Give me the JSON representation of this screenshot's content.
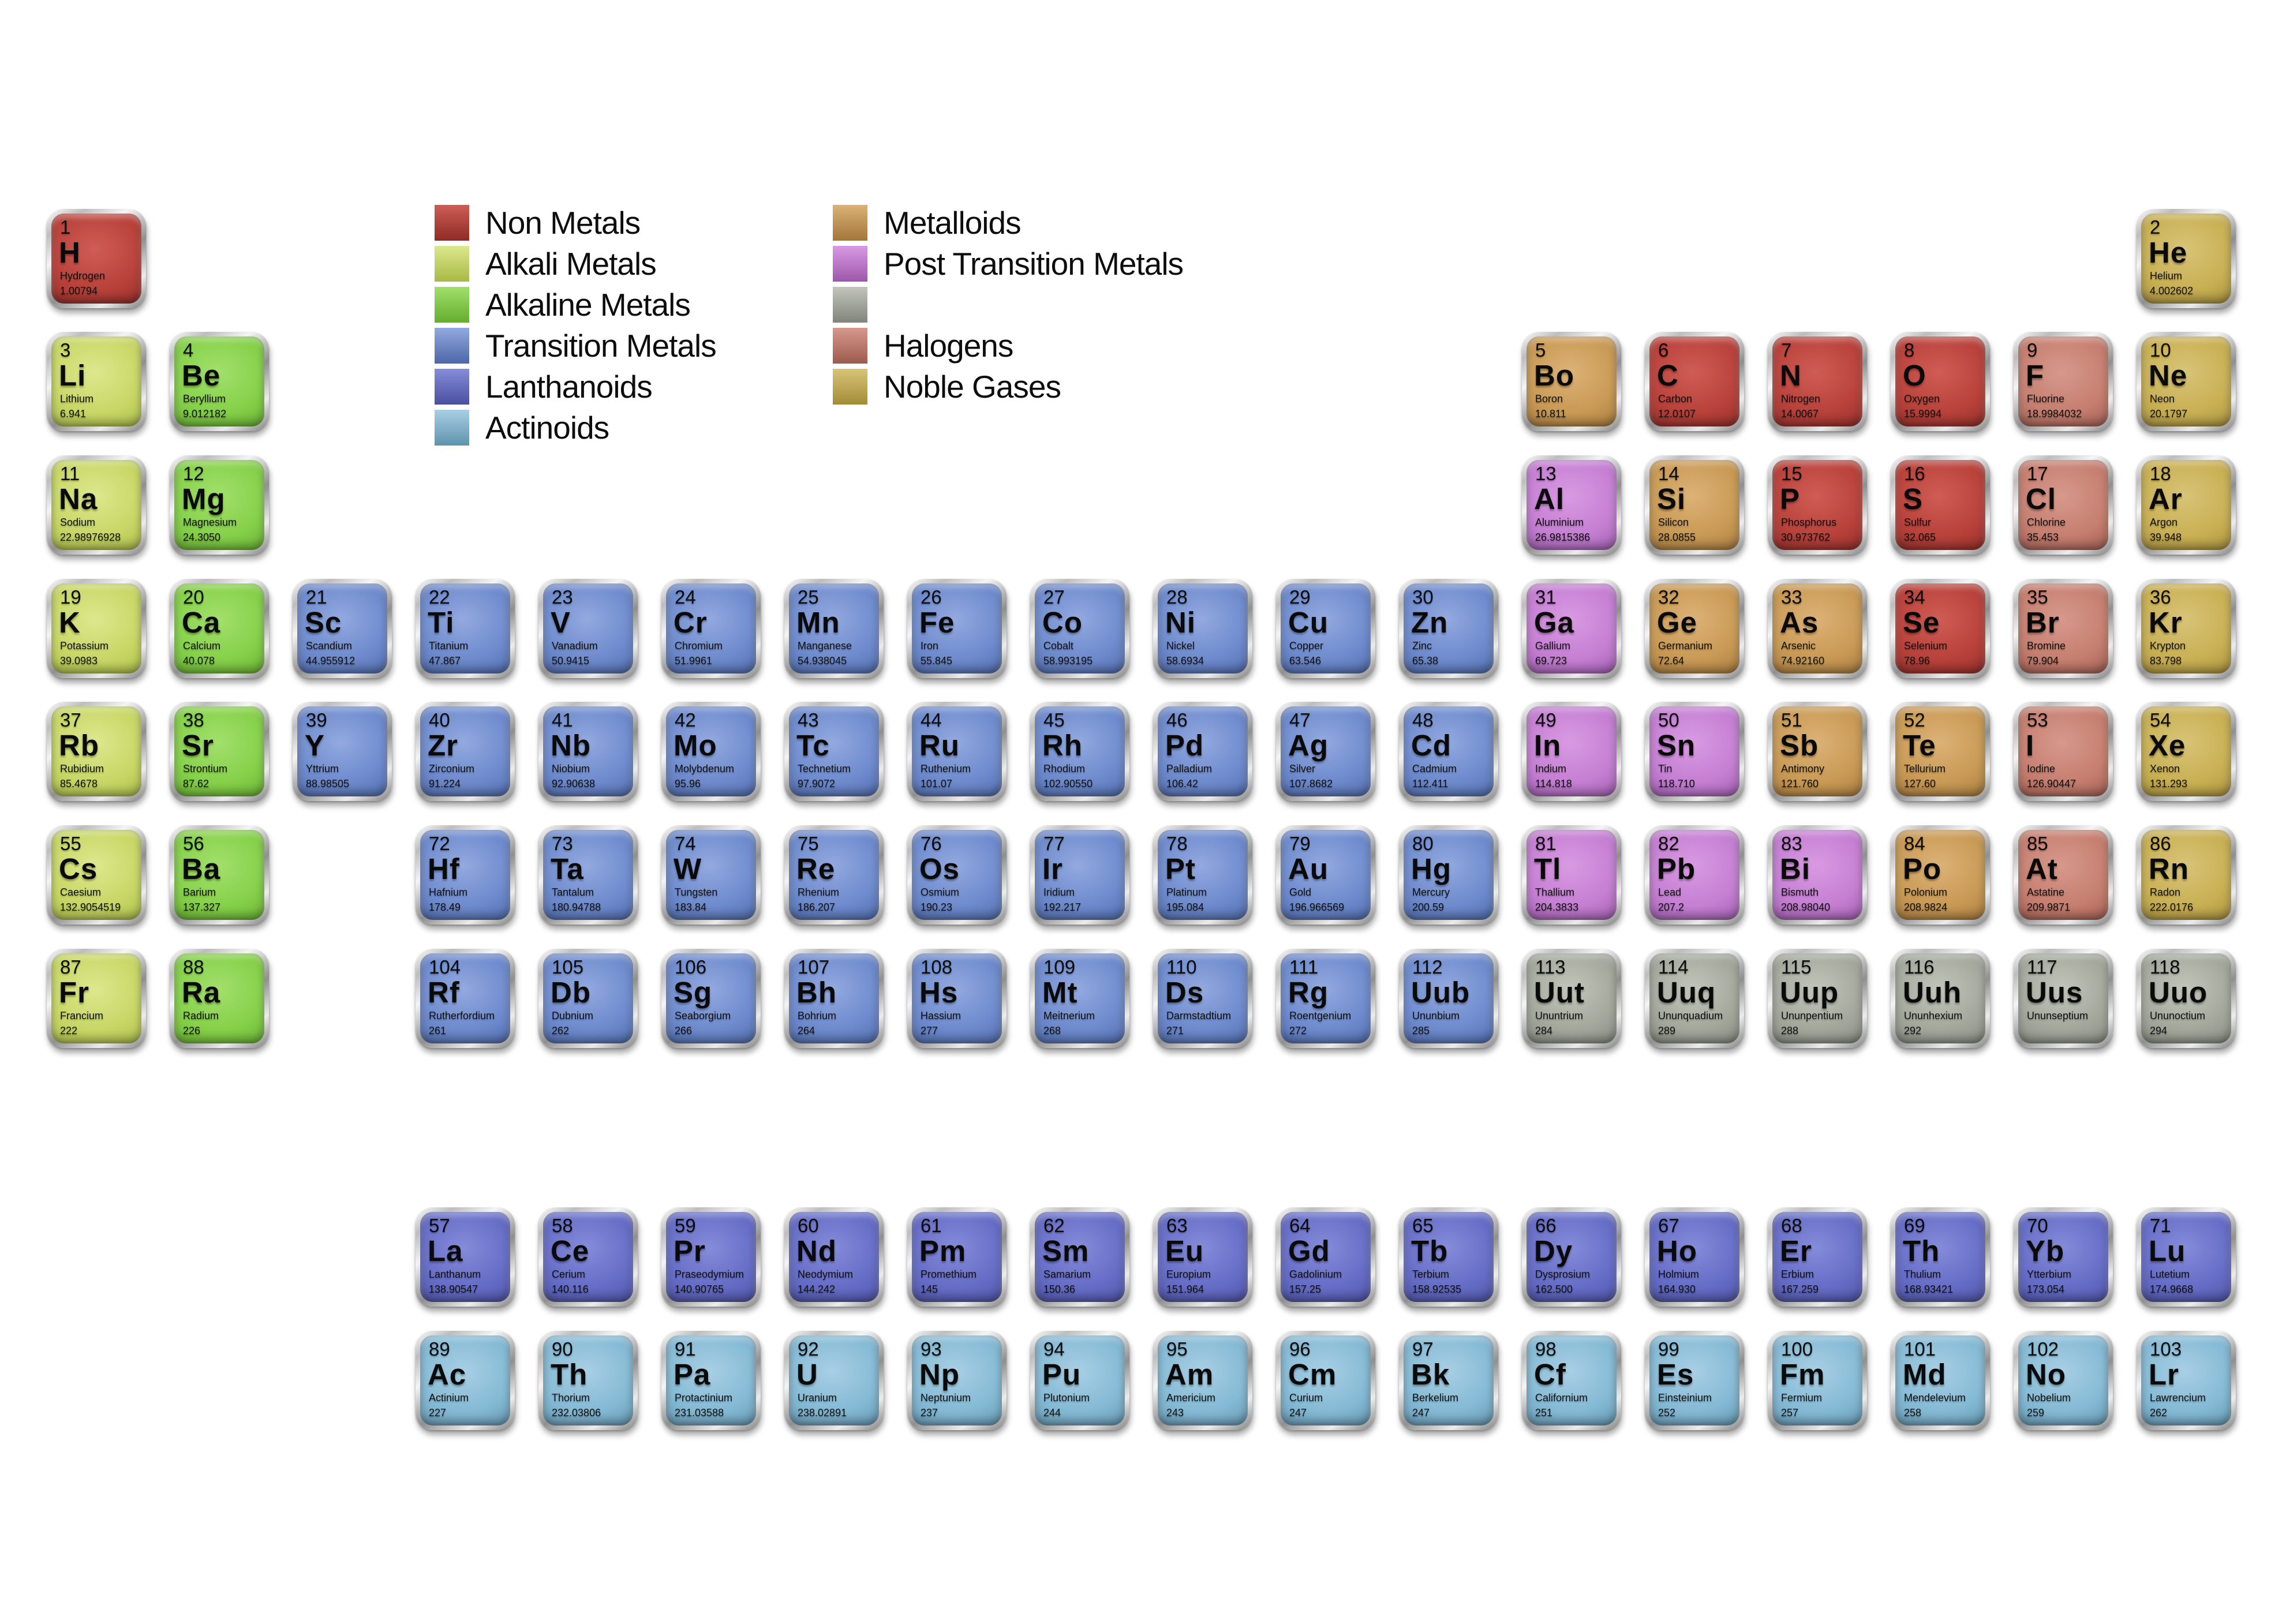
{
  "categories": {
    "non-metal": {
      "label": "Non Metals",
      "light": "#cf5d55",
      "base": "#b9423b",
      "dark": "#8e2b26"
    },
    "alkali": {
      "label": "Alkali Metals",
      "light": "#dde88e",
      "base": "#c8d766",
      "dark": "#a8b944"
    },
    "alkaline": {
      "label": "Alkaline Metals",
      "light": "#a2e06c",
      "base": "#86d14a",
      "dark": "#64ad2e"
    },
    "transition": {
      "label": "Transition Metals",
      "light": "#93a9e0",
      "base": "#6e8bcd",
      "dark": "#4c67a8"
    },
    "lanthanoid": {
      "label": "Lanthanoids",
      "light": "#858cda",
      "base": "#666dc6",
      "dark": "#4a50a0"
    },
    "actinoid": {
      "label": "Actinoids",
      "light": "#a8cfe4",
      "base": "#85bad5",
      "dark": "#5f93ad"
    },
    "metalloid": {
      "label": "Metalloids",
      "light": "#dcb277",
      "base": "#c99a55",
      "dark": "#a3763a"
    },
    "post-transition": {
      "label": "Post Transition Metals",
      "light": "#d99ae2",
      "base": "#c57fd3",
      "dark": "#9c58ab"
    },
    "unknown": {
      "label": "",
      "light": "#c3c5ba",
      "base": "#a4a89c",
      "dark": "#80847a"
    },
    "halogen": {
      "label": "Halogens",
      "light": "#d6998c",
      "base": "#c67f70",
      "dark": "#9d5a4d"
    },
    "noble": {
      "label": "Noble Gases",
      "light": "#d8c478",
      "base": "#c9b054",
      "dark": "#a38c38"
    }
  },
  "legend": {
    "column1": [
      "non-metal",
      "alkali",
      "alkaline",
      "transition",
      "lanthanoid",
      "actinoid"
    ],
    "column2": [
      "metalloid",
      "post-transition",
      "unknown",
      "halogen",
      "noble"
    ]
  },
  "elements": [
    {
      "n": "1",
      "s": "H",
      "name": "Hydrogen",
      "m": "1.00794",
      "c": "non-metal",
      "r": "1",
      "col": 1
    },
    {
      "n": "2",
      "s": "He",
      "name": "Helium",
      "m": "4.002602",
      "c": "noble",
      "r": "1",
      "col": 18
    },
    {
      "n": "3",
      "s": "Li",
      "name": "Lithium",
      "m": "6.941",
      "c": "alkali",
      "r": "2",
      "col": 1
    },
    {
      "n": "4",
      "s": "Be",
      "name": "Beryllium",
      "m": "9.012182",
      "c": "alkaline",
      "r": "2",
      "col": 2
    },
    {
      "n": "5",
      "s": "Bo",
      "name": "Boron",
      "m": "10.811",
      "c": "metalloid",
      "r": "2",
      "col": 13
    },
    {
      "n": "6",
      "s": "C",
      "name": "Carbon",
      "m": "12.0107",
      "c": "non-metal",
      "r": "2",
      "col": 14
    },
    {
      "n": "7",
      "s": "N",
      "name": "Nitrogen",
      "m": "14.0067",
      "c": "non-metal",
      "r": "2",
      "col": 15
    },
    {
      "n": "8",
      "s": "O",
      "name": "Oxygen",
      "m": "15.9994",
      "c": "non-metal",
      "r": "2",
      "col": 16
    },
    {
      "n": "9",
      "s": "F",
      "name": "Fluorine",
      "m": "18.9984032",
      "c": "halogen",
      "r": "2",
      "col": 17
    },
    {
      "n": "10",
      "s": "Ne",
      "name": "Neon",
      "m": "20.1797",
      "c": "noble",
      "r": "2",
      "col": 18
    },
    {
      "n": "11",
      "s": "Na",
      "name": "Sodium",
      "m": "22.98976928",
      "c": "alkali",
      "r": "3",
      "col": 1
    },
    {
      "n": "12",
      "s": "Mg",
      "name": "Magnesium",
      "m": "24.3050",
      "c": "alkaline",
      "r": "3",
      "col": 2
    },
    {
      "n": "13",
      "s": "Al",
      "name": "Aluminium",
      "m": "26.9815386",
      "c": "post-transition",
      "r": "3",
      "col": 13
    },
    {
      "n": "14",
      "s": "Si",
      "name": "Silicon",
      "m": "28.0855",
      "c": "metalloid",
      "r": "3",
      "col": 14
    },
    {
      "n": "15",
      "s": "P",
      "name": "Phosphorus",
      "m": "30.973762",
      "c": "non-metal",
      "r": "3",
      "col": 15
    },
    {
      "n": "16",
      "s": "S",
      "name": "Sulfur",
      "m": "32.065",
      "c": "non-metal",
      "r": "3",
      "col": 16
    },
    {
      "n": "17",
      "s": "Cl",
      "name": "Chlorine",
      "m": "35.453",
      "c": "halogen",
      "r": "3",
      "col": 17
    },
    {
      "n": "18",
      "s": "Ar",
      "name": "Argon",
      "m": "39.948",
      "c": "noble",
      "r": "3",
      "col": 18
    },
    {
      "n": "19",
      "s": "K",
      "name": "Potassium",
      "m": "39.0983",
      "c": "alkali",
      "r": "4",
      "col": 1
    },
    {
      "n": "20",
      "s": "Ca",
      "name": "Calcium",
      "m": "40.078",
      "c": "alkaline",
      "r": "4",
      "col": 2
    },
    {
      "n": "21",
      "s": "Sc",
      "name": "Scandium",
      "m": "44.955912",
      "c": "transition",
      "r": "4",
      "col": 3
    },
    {
      "n": "22",
      "s": "Ti",
      "name": "Titanium",
      "m": "47.867",
      "c": "transition",
      "r": "4",
      "col": 4
    },
    {
      "n": "23",
      "s": "V",
      "name": "Vanadium",
      "m": "50.9415",
      "c": "transition",
      "r": "4",
      "col": 5
    },
    {
      "n": "24",
      "s": "Cr",
      "name": "Chromium",
      "m": "51.9961",
      "c": "transition",
      "r": "4",
      "col": 6
    },
    {
      "n": "25",
      "s": "Mn",
      "name": "Manganese",
      "m": "54.938045",
      "c": "transition",
      "r": "4",
      "col": 7
    },
    {
      "n": "26",
      "s": "Fe",
      "name": "Iron",
      "m": "55.845",
      "c": "transition",
      "r": "4",
      "col": 8
    },
    {
      "n": "27",
      "s": "Co",
      "name": "Cobalt",
      "m": "58.993195",
      "c": "transition",
      "r": "4",
      "col": 9
    },
    {
      "n": "28",
      "s": "Ni",
      "name": "Nickel",
      "m": "58.6934",
      "c": "transition",
      "r": "4",
      "col": 10
    },
    {
      "n": "29",
      "s": "Cu",
      "name": "Copper",
      "m": "63.546",
      "c": "transition",
      "r": "4",
      "col": 11
    },
    {
      "n": "30",
      "s": "Zn",
      "name": "Zinc",
      "m": "65.38",
      "c": "transition",
      "r": "4",
      "col": 12
    },
    {
      "n": "31",
      "s": "Ga",
      "name": "Gallium",
      "m": "69.723",
      "c": "post-transition",
      "r": "4",
      "col": 13
    },
    {
      "n": "32",
      "s": "Ge",
      "name": "Germanium",
      "m": "72.64",
      "c": "metalloid",
      "r": "4",
      "col": 14
    },
    {
      "n": "33",
      "s": "As",
      "name": "Arsenic",
      "m": "74.92160",
      "c": "metalloid",
      "r": "4",
      "col": 15
    },
    {
      "n": "34",
      "s": "Se",
      "name": "Selenium",
      "m": "78.96",
      "c": "non-metal",
      "r": "4",
      "col": 16
    },
    {
      "n": "35",
      "s": "Br",
      "name": "Bromine",
      "m": "79.904",
      "c": "halogen",
      "r": "4",
      "col": 17
    },
    {
      "n": "36",
      "s": "Kr",
      "name": "Krypton",
      "m": "83.798",
      "c": "noble",
      "r": "4",
      "col": 18
    },
    {
      "n": "37",
      "s": "Rb",
      "name": "Rubidium",
      "m": "85.4678",
      "c": "alkali",
      "r": "5",
      "col": 1
    },
    {
      "n": "38",
      "s": "Sr",
      "name": "Strontium",
      "m": "87.62",
      "c": "alkaline",
      "r": "5",
      "col": 2
    },
    {
      "n": "39",
      "s": "Y",
      "name": "Yttrium",
      "m": "88.98505",
      "c": "transition",
      "r": "5",
      "col": 3
    },
    {
      "n": "40",
      "s": "Zr",
      "name": "Zirconium",
      "m": "91.224",
      "c": "transition",
      "r": "5",
      "col": 4
    },
    {
      "n": "41",
      "s": "Nb",
      "name": "Niobium",
      "m": "92.90638",
      "c": "transition",
      "r": "5",
      "col": 5
    },
    {
      "n": "42",
      "s": "Mo",
      "name": "Molybdenum",
      "m": "95.96",
      "c": "transition",
      "r": "5",
      "col": 6
    },
    {
      "n": "43",
      "s": "Tc",
      "name": "Technetium",
      "m": "97.9072",
      "c": "transition",
      "r": "5",
      "col": 7
    },
    {
      "n": "44",
      "s": "Ru",
      "name": "Ruthenium",
      "m": "101.07",
      "c": "transition",
      "r": "5",
      "col": 8
    },
    {
      "n": "45",
      "s": "Rh",
      "name": "Rhodium",
      "m": "102.90550",
      "c": "transition",
      "r": "5",
      "col": 9
    },
    {
      "n": "46",
      "s": "Pd",
      "name": "Palladium",
      "m": "106.42",
      "c": "transition",
      "r": "5",
      "col": 10
    },
    {
      "n": "47",
      "s": "Ag",
      "name": "Silver",
      "m": "107.8682",
      "c": "transition",
      "r": "5",
      "col": 11
    },
    {
      "n": "48",
      "s": "Cd",
      "name": "Cadmium",
      "m": "112.411",
      "c": "transition",
      "r": "5",
      "col": 12
    },
    {
      "n": "49",
      "s": "In",
      "name": "Indium",
      "m": "114.818",
      "c": "post-transition",
      "r": "5",
      "col": 13
    },
    {
      "n": "50",
      "s": "Sn",
      "name": "Tin",
      "m": "118.710",
      "c": "post-transition",
      "r": "5",
      "col": 14
    },
    {
      "n": "51",
      "s": "Sb",
      "name": "Antimony",
      "m": "121.760",
      "c": "metalloid",
      "r": "5",
      "col": 15
    },
    {
      "n": "52",
      "s": "Te",
      "name": "Tellurium",
      "m": "127.60",
      "c": "metalloid",
      "r": "5",
      "col": 16
    },
    {
      "n": "53",
      "s": "I",
      "name": "Iodine",
      "m": "126.90447",
      "c": "halogen",
      "r": "5",
      "col": 17
    },
    {
      "n": "54",
      "s": "Xe",
      "name": "Xenon",
      "m": "131.293",
      "c": "noble",
      "r": "5",
      "col": 18
    },
    {
      "n": "55",
      "s": "Cs",
      "name": "Caesium",
      "m": "132.9054519",
      "c": "alkali",
      "r": "6",
      "col": 1
    },
    {
      "n": "56",
      "s": "Ba",
      "name": "Barium",
      "m": "137.327",
      "c": "alkaline",
      "r": "6",
      "col": 2
    },
    {
      "n": "72",
      "s": "Hf",
      "name": "Hafnium",
      "m": "178.49",
      "c": "transition",
      "r": "6",
      "col": 4
    },
    {
      "n": "73",
      "s": "Ta",
      "name": "Tantalum",
      "m": "180.94788",
      "c": "transition",
      "r": "6",
      "col": 5
    },
    {
      "n": "74",
      "s": "W",
      "name": "Tungsten",
      "m": "183.84",
      "c": "transition",
      "r": "6",
      "col": 6
    },
    {
      "n": "75",
      "s": "Re",
      "name": "Rhenium",
      "m": "186.207",
      "c": "transition",
      "r": "6",
      "col": 7
    },
    {
      "n": "76",
      "s": "Os",
      "name": "Osmium",
      "m": "190.23",
      "c": "transition",
      "r": "6",
      "col": 8
    },
    {
      "n": "77",
      "s": "Ir",
      "name": "Iridium",
      "m": "192.217",
      "c": "transition",
      "r": "6",
      "col": 9
    },
    {
      "n": "78",
      "s": "Pt",
      "name": "Platinum",
      "m": "195.084",
      "c": "transition",
      "r": "6",
      "col": 10
    },
    {
      "n": "79",
      "s": "Au",
      "name": "Gold",
      "m": "196.966569",
      "c": "transition",
      "r": "6",
      "col": 11
    },
    {
      "n": "80",
      "s": "Hg",
      "name": "Mercury",
      "m": "200.59",
      "c": "transition",
      "r": "6",
      "col": 12
    },
    {
      "n": "81",
      "s": "Tl",
      "name": "Thallium",
      "m": "204.3833",
      "c": "post-transition",
      "r": "6",
      "col": 13
    },
    {
      "n": "82",
      "s": "Pb",
      "name": "Lead",
      "m": "207.2",
      "c": "post-transition",
      "r": "6",
      "col": 14
    },
    {
      "n": "83",
      "s": "Bi",
      "name": "Bismuth",
      "m": "208.98040",
      "c": "post-transition",
      "r": "6",
      "col": 15
    },
    {
      "n": "84",
      "s": "Po",
      "name": "Polonium",
      "m": "208.9824",
      "c": "metalloid",
      "r": "6",
      "col": 16
    },
    {
      "n": "85",
      "s": "At",
      "name": "Astatine",
      "m": "209.9871",
      "c": "halogen",
      "r": "6",
      "col": 17
    },
    {
      "n": "86",
      "s": "Rn",
      "name": "Radon",
      "m": "222.0176",
      "c": "noble",
      "r": "6",
      "col": 18
    },
    {
      "n": "87",
      "s": "Fr",
      "name": "Francium",
      "m": "222",
      "c": "alkali",
      "r": "7",
      "col": 1
    },
    {
      "n": "88",
      "s": "Ra",
      "name": "Radium",
      "m": "226",
      "c": "alkaline",
      "r": "7",
      "col": 2
    },
    {
      "n": "104",
      "s": "Rf",
      "name": "Rutherfordium",
      "m": "261",
      "c": "transition",
      "r": "7",
      "col": 4
    },
    {
      "n": "105",
      "s": "Db",
      "name": "Dubnium",
      "m": "262",
      "c": "transition",
      "r": "7",
      "col": 5
    },
    {
      "n": "106",
      "s": "Sg",
      "name": "Seaborgium",
      "m": "266",
      "c": "transition",
      "r": "7",
      "col": 6
    },
    {
      "n": "107",
      "s": "Bh",
      "name": "Bohrium",
      "m": "264",
      "c": "transition",
      "r": "7",
      "col": 7
    },
    {
      "n": "108",
      "s": "Hs",
      "name": "Hassium",
      "m": "277",
      "c": "transition",
      "r": "7",
      "col": 8
    },
    {
      "n": "109",
      "s": "Mt",
      "name": "Meitnerium",
      "m": "268",
      "c": "transition",
      "r": "7",
      "col": 9
    },
    {
      "n": "110",
      "s": "Ds",
      "name": "Darmstadtium",
      "m": "271",
      "c": "transition",
      "r": "7",
      "col": 10
    },
    {
      "n": "111",
      "s": "Rg",
      "name": "Roentgenium",
      "m": "272",
      "c": "transition",
      "r": "7",
      "col": 11
    },
    {
      "n": "112",
      "s": "Uub",
      "name": "Ununbium",
      "m": "285",
      "c": "transition",
      "r": "7",
      "col": 12
    },
    {
      "n": "113",
      "s": "Uut",
      "name": "Ununtrium",
      "m": "284",
      "c": "unknown",
      "r": "7",
      "col": 13
    },
    {
      "n": "114",
      "s": "Uuq",
      "name": "Ununquadium",
      "m": "289",
      "c": "unknown",
      "r": "7",
      "col": 14
    },
    {
      "n": "115",
      "s": "Uup",
      "name": "Ununpentium",
      "m": "288",
      "c": "unknown",
      "r": "7",
      "col": 15
    },
    {
      "n": "116",
      "s": "Uuh",
      "name": "Ununhexium",
      "m": "292",
      "c": "unknown",
      "r": "7",
      "col": 16
    },
    {
      "n": "117",
      "s": "Uus",
      "name": "Ununseptium",
      "m": "",
      "c": "unknown",
      "r": "7",
      "col": 17
    },
    {
      "n": "118",
      "s": "Uuo",
      "name": "Ununoctium",
      "m": "294",
      "c": "unknown",
      "r": "7",
      "col": 18
    },
    {
      "n": "57",
      "s": "La",
      "name": "Lanthanum",
      "m": "138.90547",
      "c": "lanthanoid",
      "r": "L",
      "col": 4
    },
    {
      "n": "58",
      "s": "Ce",
      "name": "Cerium",
      "m": "140.116",
      "c": "lanthanoid",
      "r": "L",
      "col": 5
    },
    {
      "n": "59",
      "s": "Pr",
      "name": "Praseodymium",
      "m": "140.90765",
      "c": "lanthanoid",
      "r": "L",
      "col": 6
    },
    {
      "n": "60",
      "s": "Nd",
      "name": "Neodymium",
      "m": "144.242",
      "c": "lanthanoid",
      "r": "L",
      "col": 7
    },
    {
      "n": "61",
      "s": "Pm",
      "name": "Promethium",
      "m": "145",
      "c": "lanthanoid",
      "r": "L",
      "col": 8
    },
    {
      "n": "62",
      "s": "Sm",
      "name": "Samarium",
      "m": "150.36",
      "c": "lanthanoid",
      "r": "L",
      "col": 9
    },
    {
      "n": "63",
      "s": "Eu",
      "name": "Europium",
      "m": "151.964",
      "c": "lanthanoid",
      "r": "L",
      "col": 10
    },
    {
      "n": "64",
      "s": "Gd",
      "name": "Gadolinium",
      "m": "157.25",
      "c": "lanthanoid",
      "r": "L",
      "col": 11
    },
    {
      "n": "65",
      "s": "Tb",
      "name": "Terbium",
      "m": "158.92535",
      "c": "lanthanoid",
      "r": "L",
      "col": 12
    },
    {
      "n": "66",
      "s": "Dy",
      "name": "Dysprosium",
      "m": "162.500",
      "c": "lanthanoid",
      "r": "L",
      "col": 13
    },
    {
      "n": "67",
      "s": "Ho",
      "name": "Holmium",
      "m": "164.930",
      "c": "lanthanoid",
      "r": "L",
      "col": 14
    },
    {
      "n": "68",
      "s": "Er",
      "name": "Erbium",
      "m": "167.259",
      "c": "lanthanoid",
      "r": "L",
      "col": 15
    },
    {
      "n": "69",
      "s": "Th",
      "name": "Thulium",
      "m": "168.93421",
      "c": "lanthanoid",
      "r": "L",
      "col": 16
    },
    {
      "n": "70",
      "s": "Yb",
      "name": "Ytterbium",
      "m": "173.054",
      "c": "lanthanoid",
      "r": "L",
      "col": 17
    },
    {
      "n": "71",
      "s": "Lu",
      "name": "Lutetium",
      "m": "174.9668",
      "c": "lanthanoid",
      "r": "L",
      "col": 18
    },
    {
      "n": "89",
      "s": "Ac",
      "name": "Actinium",
      "m": "227",
      "c": "actinoid",
      "r": "A",
      "col": 4
    },
    {
      "n": "90",
      "s": "Th",
      "name": "Thorium",
      "m": "232.03806",
      "c": "actinoid",
      "r": "A",
      "col": 5
    },
    {
      "n": "91",
      "s": "Pa",
      "name": "Protactinium",
      "m": "231.03588",
      "c": "actinoid",
      "r": "A",
      "col": 6
    },
    {
      "n": "92",
      "s": "U",
      "name": "Uranium",
      "m": "238.02891",
      "c": "actinoid",
      "r": "A",
      "col": 7
    },
    {
      "n": "93",
      "s": "Np",
      "name": "Neptunium",
      "m": "237",
      "c": "actinoid",
      "r": "A",
      "col": 8
    },
    {
      "n": "94",
      "s": "Pu",
      "name": "Plutonium",
      "m": "244",
      "c": "actinoid",
      "r": "A",
      "col": 9
    },
    {
      "n": "95",
      "s": "Am",
      "name": "Americium",
      "m": "243",
      "c": "actinoid",
      "r": "A",
      "col": 10
    },
    {
      "n": "96",
      "s": "Cm",
      "name": "Curium",
      "m": "247",
      "c": "actinoid",
      "r": "A",
      "col": 11
    },
    {
      "n": "97",
      "s": "Bk",
      "name": "Berkelium",
      "m": "247",
      "c": "actinoid",
      "r": "A",
      "col": 12
    },
    {
      "n": "98",
      "s": "Cf",
      "name": "Californium",
      "m": "251",
      "c": "actinoid",
      "r": "A",
      "col": 13
    },
    {
      "n": "99",
      "s": "Es",
      "name": "Einsteinium",
      "m": "252",
      "c": "actinoid",
      "r": "A",
      "col": 14
    },
    {
      "n": "100",
      "s": "Fm",
      "name": "Fermium",
      "m": "257",
      "c": "actinoid",
      "r": "A",
      "col": 15
    },
    {
      "n": "101",
      "s": "Md",
      "name": "Mendelevium",
      "m": "258",
      "c": "actinoid",
      "r": "A",
      "col": 16
    },
    {
      "n": "102",
      "s": "No",
      "name": "Nobelium",
      "m": "259",
      "c": "actinoid",
      "r": "A",
      "col": 17
    },
    {
      "n": "103",
      "s": "Lr",
      "name": "Lawrencium",
      "m": "262",
      "c": "actinoid",
      "r": "A",
      "col": 18
    }
  ]
}
